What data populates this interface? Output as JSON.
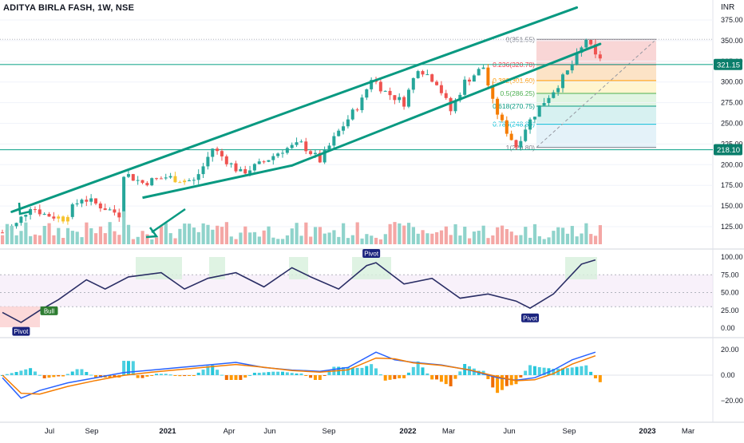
{
  "title": "ADITYA BIRLA FASH, 1W, NSE",
  "currency": "INR",
  "colors": {
    "up": "#26a69a",
    "down": "#ef5350",
    "channel": "#089981",
    "level": "#22ab94",
    "arrow": "#089981",
    "rsi": "#2a2e65",
    "macd_fast": "#2962ff",
    "macd_slow": "#f57c00"
  },
  "chart_data": [
    {
      "type": "candlestick",
      "title": "ADITYA BIRLA FASH, 1W, NSE",
      "y_unit": "INR",
      "ylim": [
        104,
        392
      ],
      "y_ticks": [
        125,
        150,
        175,
        200,
        225,
        250,
        275,
        300,
        325,
        350,
        375
      ],
      "x_ticks": [
        "Jul",
        "Sep",
        "2021",
        "Apr",
        "Jun",
        "Sep",
        "2022",
        "Mar",
        "Jun",
        "Sep",
        "2023",
        "Mar"
      ],
      "last_price_label": "321.15",
      "support_label": "218.10",
      "horizontal_levels": [
        321.15,
        218.1
      ],
      "fibonacci": [
        {
          "ratio": "0",
          "price": 351.55,
          "label": "0(351.55)"
        },
        {
          "ratio": "0.236",
          "price": 320.78,
          "label": "0.236(320.78)"
        },
        {
          "ratio": "0.382",
          "price": 301.6,
          "label": "0.382(301.60)"
        },
        {
          "ratio": "0.5",
          "price": 286.25,
          "label": "0.5(286.25)"
        },
        {
          "ratio": "0.618",
          "price": 270.75,
          "label": "0.618(270.75)"
        },
        {
          "ratio": "0.786",
          "price": 248.89,
          "label": "0.786(248.89)"
        },
        {
          "ratio": "1",
          "price": 220.8,
          "label": "1(220.80)"
        }
      ],
      "channel_lines": [
        {
          "name": "upper",
          "from": {
            "week": 2,
            "price": 143
          },
          "to": {
            "week": 123,
            "price": 390
          }
        },
        {
          "name": "lower",
          "from": {
            "week": 62,
            "price": 199
          },
          "to": {
            "week": 128,
            "price": 346
          }
        }
      ],
      "volume_shown": true
    },
    {
      "type": "line",
      "name": "RSI oscillator",
      "ylim": [
        0,
        100
      ],
      "y_ticks": [
        "100.00",
        "75.00",
        "50.00",
        "25.00",
        "0.00"
      ],
      "labels": [
        {
          "text": "Pivot",
          "week": 4,
          "value": 6
        },
        {
          "text": "Bull",
          "week": 10,
          "value": 26
        },
        {
          "text": "Pivot",
          "week": 79,
          "value": 91
        },
        {
          "text": "Pivot",
          "week": 113,
          "value": 25
        }
      ]
    },
    {
      "type": "area",
      "name": "MACD",
      "ylim": [
        -25,
        25
      ],
      "y_ticks": [
        "20.00",
        "0.00",
        "−20.00"
      ]
    }
  ]
}
